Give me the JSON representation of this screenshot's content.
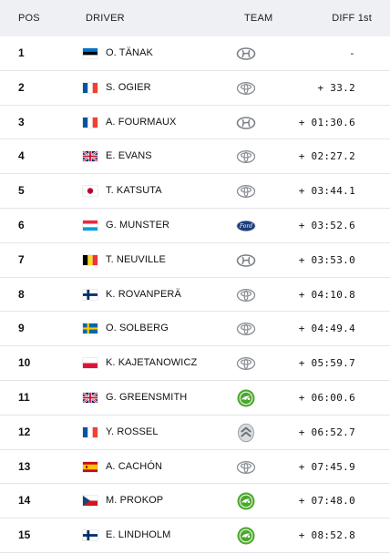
{
  "header": {
    "pos": "POS",
    "driver": "DRIVER",
    "team": "TEAM",
    "diff": "DIFF 1st"
  },
  "rows": [
    {
      "pos": "1",
      "driver": "O. TÄNAK",
      "flag": "estonia-flag",
      "team": "hyundai-icon",
      "diff": "-"
    },
    {
      "pos": "2",
      "driver": "S. OGIER",
      "flag": "france-flag",
      "team": "toyota-icon",
      "diff": "+ 33.2"
    },
    {
      "pos": "3",
      "driver": "A. FOURMAUX",
      "flag": "france-flag",
      "team": "hyundai-icon",
      "diff": "+ 01:30.6"
    },
    {
      "pos": "4",
      "driver": "E. EVANS",
      "flag": "united-kingdom-flag",
      "team": "toyota-icon",
      "diff": "+ 02:27.2"
    },
    {
      "pos": "5",
      "driver": "T. KATSUTA",
      "flag": "japan-flag",
      "team": "toyota-icon",
      "diff": "+ 03:44.1"
    },
    {
      "pos": "6",
      "driver": "G. MUNSTER",
      "flag": "luxembourg-flag",
      "team": "ford-icon",
      "diff": "+ 03:52.6"
    },
    {
      "pos": "7",
      "driver": "T. NEUVILLE",
      "flag": "belgium-flag",
      "team": "hyundai-icon",
      "diff": "+ 03:53.0"
    },
    {
      "pos": "8",
      "driver": "K. ROVANPERÄ",
      "flag": "finland-flag",
      "team": "toyota-icon",
      "diff": "+ 04:10.8"
    },
    {
      "pos": "9",
      "driver": "O. SOLBERG",
      "flag": "sweden-flag",
      "team": "toyota-icon",
      "diff": "+ 04:49.4"
    },
    {
      "pos": "10",
      "driver": "K. KAJETANOWICZ",
      "flag": "poland-flag",
      "team": "toyota-icon",
      "diff": "+ 05:59.7"
    },
    {
      "pos": "11",
      "driver": "G. GREENSMITH",
      "flag": "united-kingdom-flag",
      "team": "skoda-icon",
      "diff": "+ 06:00.6"
    },
    {
      "pos": "12",
      "driver": "Y. ROSSEL",
      "flag": "france-flag",
      "team": "citroen-icon",
      "diff": "+ 06:52.7"
    },
    {
      "pos": "13",
      "driver": "A. CACHÓN",
      "flag": "spain-flag",
      "team": "toyota-icon",
      "diff": "+ 07:45.9"
    },
    {
      "pos": "14",
      "driver": "M. PROKOP",
      "flag": "czech-republic-flag",
      "team": "skoda-icon",
      "diff": "+ 07:48.0"
    },
    {
      "pos": "15",
      "driver": "E. LINDHOLM",
      "flag": "finland-flag",
      "team": "skoda-icon",
      "diff": "+ 08:52.8"
    }
  ],
  "colors": {
    "header_bg": "#eef0f3",
    "row_border": "#e3e5e8",
    "skoda_green": "#4ba82e",
    "ford_blue": "#1b3c7a"
  }
}
